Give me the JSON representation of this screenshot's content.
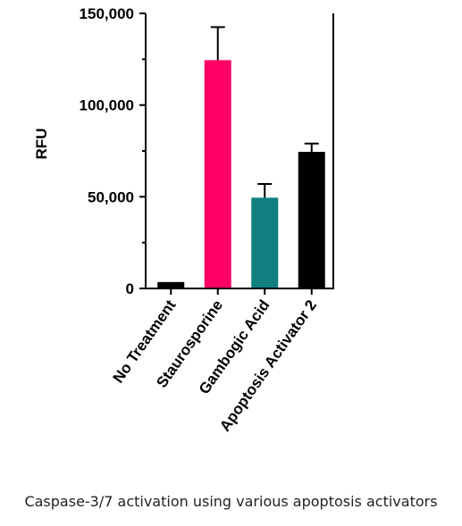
{
  "caption": "Caspase-3/7 activation using various apoptosis activators",
  "chart_data": {
    "type": "bar",
    "title": "",
    "xlabel": "",
    "ylabel": "RFU",
    "ylim": [
      0,
      150000
    ],
    "yticks": [
      0,
      50000,
      100000,
      150000
    ],
    "ytick_labels": [
      "0",
      "50,000",
      "100,000",
      "150,000"
    ],
    "minor_ticks": true,
    "categories": [
      "No Treatment",
      "Staurosporine",
      "Gambogic Acid",
      "Apoptosis Activator 2"
    ],
    "values": [
      3500,
      124500,
      49500,
      74500
    ],
    "errors": [
      0,
      18000,
      7500,
      4500
    ],
    "colors": [
      "#000000",
      "#ff0066",
      "#0f7f7f",
      "#000000"
    ],
    "grid": false
  }
}
